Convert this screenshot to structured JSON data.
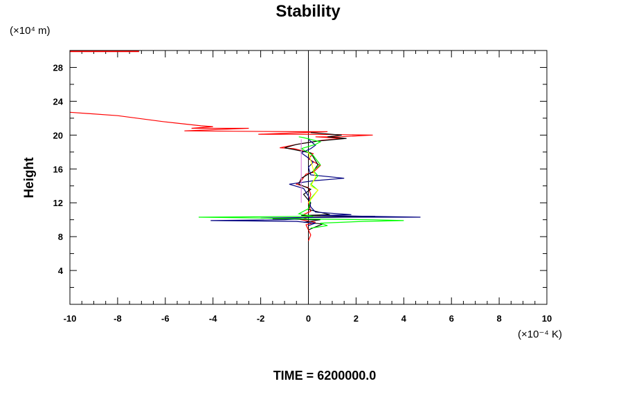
{
  "chart_data": {
    "type": "line",
    "title": "Stability",
    "xlabel": "(×10⁻⁴ K)",
    "ylabel": "Height",
    "yunit": "(×10⁴ m)",
    "footer": "TIME = 6200000.0",
    "xlim": [
      -10,
      10
    ],
    "ylim": [
      0,
      30
    ],
    "xticks": [
      "-10",
      "-8",
      "-6",
      "-4",
      "-2",
      "0",
      "2",
      "4",
      "6",
      "8",
      "10"
    ],
    "yticks": [
      "4",
      "8",
      "12",
      "16",
      "20",
      "24",
      "28"
    ],
    "grid": false,
    "series": [
      {
        "name": "red-top",
        "color": "#ff0000",
        "points": [
          [
            -10,
            29.9
          ],
          [
            -7.1,
            29.9
          ]
        ]
      },
      {
        "name": "red",
        "color": "#ff0000",
        "points": [
          [
            -10,
            22.7
          ],
          [
            -8,
            22.3
          ],
          [
            -6.1,
            21.6
          ],
          [
            -4.5,
            21.1
          ],
          [
            -4,
            21.0
          ],
          [
            -4.9,
            20.8
          ],
          [
            -2.5,
            20.8
          ],
          [
            -5.2,
            20.5
          ],
          [
            -0.5,
            20.4
          ],
          [
            0.8,
            20.4
          ],
          [
            -2.1,
            20.1
          ],
          [
            0,
            20.1
          ],
          [
            2.7,
            20.0
          ],
          [
            1.3,
            19.8
          ],
          [
            0.3,
            19.8
          ],
          [
            1.4,
            19.6
          ],
          [
            0.6,
            19.4
          ],
          [
            -0.5,
            18.9
          ],
          [
            -1.2,
            18.5
          ],
          [
            -0.6,
            18.4
          ],
          [
            0.2,
            17.8
          ],
          [
            0,
            17.2
          ],
          [
            0.5,
            16.4
          ],
          [
            0.2,
            15.6
          ],
          [
            -0.1,
            15.4
          ],
          [
            -0.3,
            14.6
          ],
          [
            -0.5,
            14.2
          ],
          [
            0,
            13.8
          ],
          [
            0.1,
            13
          ],
          [
            0,
            12
          ],
          [
            0.1,
            11
          ],
          [
            -0.2,
            10.6
          ],
          [
            0,
            10.3
          ],
          [
            -0.3,
            10.0
          ],
          [
            0.3,
            9.7
          ],
          [
            -0.1,
            9.4
          ],
          [
            0,
            8.8
          ],
          [
            0.1,
            8.2
          ],
          [
            0,
            7.5
          ]
        ]
      },
      {
        "name": "black",
        "color": "#000000",
        "points": [
          [
            0.1,
            20.3
          ],
          [
            1.4,
            20.0
          ],
          [
            0.8,
            19.8
          ],
          [
            1.6,
            19.6
          ],
          [
            0.4,
            19.3
          ],
          [
            -0.5,
            18.9
          ],
          [
            -1,
            18.5
          ],
          [
            0.1,
            17.9
          ],
          [
            0.4,
            16.5
          ],
          [
            0.2,
            15.7
          ],
          [
            -0.3,
            14.9
          ],
          [
            -0.4,
            14.2
          ],
          [
            0.1,
            13.6
          ],
          [
            -0.2,
            13
          ],
          [
            0.1,
            12
          ],
          [
            0,
            11.2
          ],
          [
            0.3,
            11
          ],
          [
            0.9,
            10.6
          ],
          [
            -0.3,
            10.5
          ],
          [
            2.8,
            10.4
          ],
          [
            0.2,
            10.3
          ],
          [
            -1.5,
            10.1
          ],
          [
            0.5,
            10.0
          ],
          [
            -0.2,
            9.7
          ],
          [
            0.6,
            9.5
          ],
          [
            0,
            8.8
          ]
        ]
      },
      {
        "name": "navy",
        "color": "#000080",
        "points": [
          [
            0,
            19.5
          ],
          [
            0.3,
            18.8
          ],
          [
            0.1,
            18.4
          ],
          [
            -0.3,
            17.9
          ],
          [
            0,
            17.3
          ],
          [
            0.2,
            16.8
          ],
          [
            0,
            16.2
          ],
          [
            0.1,
            15.3
          ],
          [
            1.5,
            14.9
          ],
          [
            0.2,
            14.6
          ],
          [
            -0.8,
            14.2
          ],
          [
            -0.2,
            13.7
          ],
          [
            0,
            12.8
          ],
          [
            0.1,
            11.5
          ],
          [
            0.3,
            10.9
          ],
          [
            1.8,
            10.6
          ],
          [
            0.5,
            10.5
          ],
          [
            4.7,
            10.3
          ],
          [
            1.5,
            10.3
          ],
          [
            -2,
            10.2
          ],
          [
            -0.3,
            10.1
          ],
          [
            -1,
            10.0
          ],
          [
            -4.1,
            9.9
          ],
          [
            -0.5,
            9.8
          ],
          [
            0.3,
            9.6
          ],
          [
            0,
            9.3
          ]
        ]
      },
      {
        "name": "green",
        "color": "#00ff00",
        "points": [
          [
            -0.4,
            19.8
          ],
          [
            -0.2,
            19.7
          ],
          [
            0.5,
            19.2
          ],
          [
            0.3,
            18.9
          ],
          [
            -0.3,
            18.4
          ],
          [
            -0.1,
            18.1
          ],
          [
            0.2,
            17.6
          ],
          [
            0.5,
            16.5
          ],
          [
            0.2,
            15.8
          ],
          [
            0.4,
            15.2
          ],
          [
            0.1,
            14.2
          ],
          [
            0.4,
            13.5
          ],
          [
            0.1,
            12.5
          ],
          [
            0,
            11.3
          ],
          [
            -0.2,
            11.0
          ],
          [
            -0.4,
            10.7
          ],
          [
            0.2,
            10.4
          ],
          [
            -4.6,
            10.3
          ],
          [
            -2,
            10.2
          ],
          [
            -0.5,
            10.1
          ],
          [
            2.7,
            10.0
          ],
          [
            4,
            9.9
          ],
          [
            2.3,
            9.8
          ],
          [
            0.5,
            9.6
          ],
          [
            0.8,
            9.3
          ],
          [
            0.1,
            9.0
          ]
        ]
      },
      {
        "name": "yellow",
        "color": "#ffff00",
        "points": [
          [
            0,
            18
          ],
          [
            0.3,
            15
          ],
          [
            0.1,
            14
          ],
          [
            0.4,
            13.5
          ],
          [
            0,
            12
          ]
        ]
      },
      {
        "name": "violet",
        "color": "#dd88dd",
        "points": [
          [
            -0.3,
            19.5
          ],
          [
            -0.3,
            12
          ]
        ]
      }
    ]
  }
}
